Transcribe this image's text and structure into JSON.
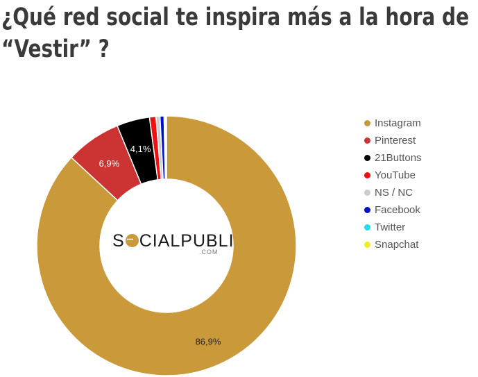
{
  "title": {
    "line1": "¿Qué red social te inspira más a la hora de",
    "line2": "“Vestir” ?"
  },
  "logo": {
    "main_before": "S",
    "main_after": "CIALPUBLI",
    "sub": ".COM"
  },
  "chart_data": {
    "type": "pie",
    "donut": true,
    "title": "¿Qué red social te inspira más a la hora de “Vestir” ?",
    "legend_position": "right",
    "series": [
      {
        "name": "Instagram",
        "value": 86.9,
        "label": "86,9%",
        "color": "#c9993a"
      },
      {
        "name": "Pinterest",
        "value": 6.9,
        "label": "6,9%",
        "color": "#cc3333"
      },
      {
        "name": "21Buttons",
        "value": 4.1,
        "label": "4,1%",
        "color": "#000000"
      },
      {
        "name": "YouTube",
        "value": 0.8,
        "label": "",
        "color": "#ee1111"
      },
      {
        "name": "NS / NC",
        "value": 0.5,
        "label": "",
        "color": "#cccccc"
      },
      {
        "name": "Facebook",
        "value": 0.5,
        "label": "",
        "color": "#0011cc"
      },
      {
        "name": "Twitter",
        "value": 0.15,
        "label": "",
        "color": "#22ddee"
      },
      {
        "name": "Snapchat",
        "value": 0.15,
        "label": "",
        "color": "#eeee22"
      }
    ]
  }
}
